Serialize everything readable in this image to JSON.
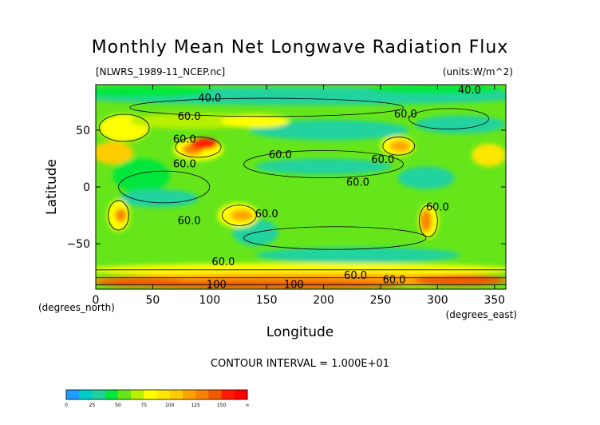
{
  "title": "Monthly Mean Net Longwave Radiation Flux",
  "file_label": "[NLWRS_1989-11_NCEP.nc]",
  "units_label": "(units:W/m^2)",
  "contour_interval": "CONTOUR INTERVAL = 1.000E+01",
  "chart_data": {
    "type": "heatmap",
    "title": "Monthly Mean Net Longwave Radiation Flux",
    "xlabel": "Longitude",
    "ylabel": "Latitude",
    "x_unit_label": "(degrees_east)",
    "y_unit_label": "(degrees_north)",
    "xlim": [
      0,
      360
    ],
    "ylim": [
      -90,
      90
    ],
    "x_ticks": [
      0,
      50,
      100,
      150,
      200,
      250,
      300,
      350
    ],
    "y_ticks": [
      50,
      0,
      -50
    ],
    "contour_labels": [
      {
        "text": "40.0",
        "lon": 100,
        "lat": 78
      },
      {
        "text": "40.0",
        "lon": 328,
        "lat": 85
      },
      {
        "text": "60.0",
        "lon": 82,
        "lat": 62
      },
      {
        "text": "60.0",
        "lon": 272,
        "lat": 64
      },
      {
        "text": "60.0",
        "lon": 78,
        "lat": 42
      },
      {
        "text": "60.0",
        "lon": 78,
        "lat": 20
      },
      {
        "text": "60.0",
        "lon": 162,
        "lat": 28
      },
      {
        "text": "60.0",
        "lon": 252,
        "lat": 24
      },
      {
        "text": "60.0",
        "lon": 230,
        "lat": 4
      },
      {
        "text": "60.0",
        "lon": 150,
        "lat": -24
      },
      {
        "text": "60.0",
        "lon": 300,
        "lat": -18
      },
      {
        "text": "60.0",
        "lon": 82,
        "lat": -30
      },
      {
        "text": "60.0",
        "lon": 112,
        "lat": -66
      },
      {
        "text": "60.0",
        "lon": 228,
        "lat": -78
      },
      {
        "text": "60.0",
        "lon": 262,
        "lat": -82
      },
      {
        "text": "100",
        "lon": 106,
        "lat": -86
      },
      {
        "text": "100",
        "lon": 174,
        "lat": -86
      }
    ],
    "colorbar": {
      "tick_labels": [
        "0",
        "25",
        "50",
        "75",
        "100",
        "125",
        "150",
        "∞"
      ],
      "colors": [
        "#1e9bff",
        "#00cccc",
        "#20d29f",
        "#00e63d",
        "#66e61a",
        "#b8f000",
        "#ffff00",
        "#ffe600",
        "#ffcc00",
        "#ffa300",
        "#f78200",
        "#f25a00",
        "#ff1a00",
        "#ff0000"
      ]
    }
  }
}
